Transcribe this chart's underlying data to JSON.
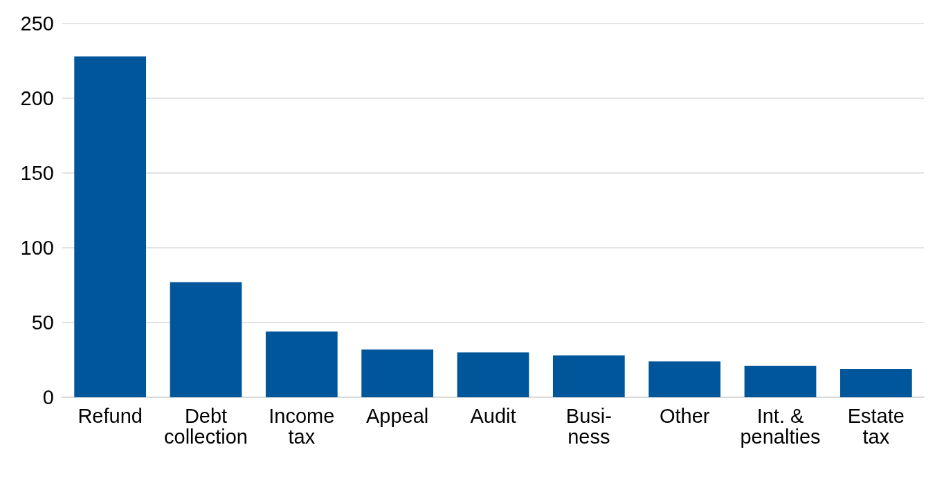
{
  "chart_data": {
    "type": "bar",
    "categories": [
      "Refund",
      "Debt\ncollection",
      "Income\ntax",
      "Appeal",
      "Audit",
      "Busi-\nness",
      "Other",
      "Int. &\npenalties",
      "Estate\ntax"
    ],
    "values": [
      228,
      77,
      44,
      32,
      30,
      28,
      24,
      21,
      19
    ],
    "color": "#00569b",
    "ylim": [
      0,
      250
    ],
    "yticks": [
      0,
      50,
      100,
      150,
      200,
      250
    ],
    "grid": "y"
  }
}
